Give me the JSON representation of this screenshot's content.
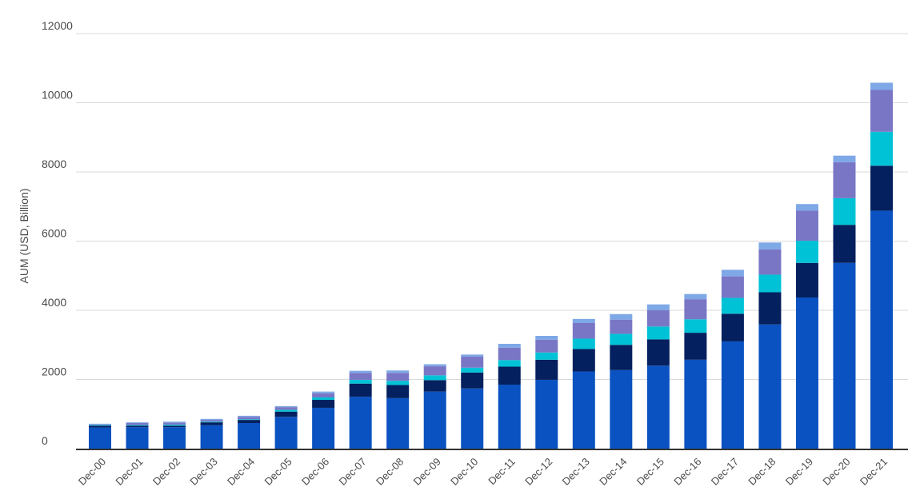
{
  "chart_data": {
    "type": "bar",
    "stacked": true,
    "ylabel": "AUM (USD, Billion)",
    "ylim": [
      0,
      12000
    ],
    "yticks": [
      "0",
      "2000",
      "4000",
      "6000",
      "8000",
      "10000",
      "12000"
    ],
    "grid": true,
    "categories": [
      "Dec-00",
      "Dec-01",
      "Dec-02",
      "Dec-03",
      "Dec-04",
      "Dec-05",
      "Dec-06",
      "Dec-07",
      "Dec-08",
      "Dec-09",
      "Dec-10",
      "Dec-11",
      "Dec-12",
      "Dec-13",
      "Dec-14",
      "Dec-15",
      "Dec-16",
      "Dec-17",
      "Dec-18",
      "Dec-19",
      "Dec-20",
      "Dec-21"
    ],
    "series": [
      {
        "color": "#0a52c1",
        "values": [
          610,
          620,
          620,
          680,
          740,
          920,
          1180,
          1500,
          1460,
          1650,
          1740,
          1850,
          1990,
          2230,
          2270,
          2400,
          2570,
          3100,
          3590,
          4370,
          5370,
          6880
        ]
      },
      {
        "color": "#04205e",
        "values": [
          50,
          40,
          40,
          80,
          90,
          150,
          230,
          380,
          380,
          330,
          460,
          520,
          580,
          650,
          730,
          760,
          780,
          800,
          930,
          1000,
          1100,
          1300
        ]
      },
      {
        "color": "#00c2d6",
        "values": [
          20,
          20,
          30,
          20,
          20,
          50,
          70,
          110,
          120,
          140,
          140,
          190,
          210,
          300,
          320,
          370,
          390,
          460,
          510,
          640,
          770,
          980
        ]
      },
      {
        "color": "#7a76c6",
        "values": [
          20,
          60,
          60,
          50,
          70,
          80,
          120,
          200,
          230,
          260,
          320,
          360,
          370,
          450,
          410,
          470,
          580,
          620,
          730,
          870,
          1040,
          1210
        ]
      },
      {
        "color": "#7ea8e6",
        "values": [
          20,
          20,
          30,
          30,
          30,
          30,
          50,
          60,
          70,
          60,
          60,
          110,
          110,
          120,
          160,
          170,
          150,
          190,
          200,
          190,
          190,
          210
        ]
      }
    ]
  }
}
